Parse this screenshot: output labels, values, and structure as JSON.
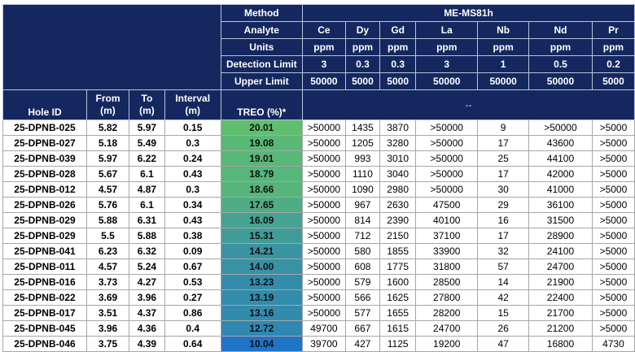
{
  "caption": "",
  "header": {
    "method_label": "Method",
    "method_value": "ME-MS81h",
    "analyte_label": "Analyte",
    "units_label": "Units",
    "detection_label": "Detection Limit",
    "upper_label": "Upper Limit",
    "analytes": [
      "Ce",
      "Dy",
      "Gd",
      "La",
      "Nb",
      "Nd",
      "Pr"
    ],
    "units": [
      "ppm",
      "ppm",
      "ppm",
      "ppm",
      "ppm",
      "ppm",
      "ppm"
    ],
    "detection_limits": [
      "3",
      "0.3",
      "0.3",
      "3",
      "1",
      "0.5",
      "0.2"
    ],
    "upper_limits": [
      "50000",
      "5000",
      "5000",
      "50000",
      "50000",
      "50000",
      "5000"
    ],
    "col_hole_id": "Hole ID",
    "col_from": "From (m)",
    "col_to": "To (m)",
    "col_interval": "Interval (m)",
    "col_treo": "TREO (%)*",
    "dash": "--"
  },
  "colors": {
    "header_bg": "#14285f",
    "treo_high": "#5fbf6e",
    "treo_low": "#1f74c8"
  },
  "rows": [
    {
      "hole": "25-DPNB-025",
      "from": "5.82",
      "to": "5.97",
      "interval": "0.15",
      "treo": "20.01",
      "Ce": ">50000",
      "Dy": "1435",
      "Gd": "3870",
      "La": ">50000",
      "Nb": "9",
      "Nd": ">50000",
      "Pr": ">5000"
    },
    {
      "hole": "25-DPNB-027",
      "from": "5.18",
      "to": "5.49",
      "interval": "0.3",
      "treo": "19.08",
      "Ce": ">50000",
      "Dy": "1205",
      "Gd": "3280",
      "La": ">50000",
      "Nb": "17",
      "Nd": "43600",
      "Pr": ">5000"
    },
    {
      "hole": "25-DPNB-039",
      "from": "5.97",
      "to": "6.22",
      "interval": "0.24",
      "treo": "19.01",
      "Ce": ">50000",
      "Dy": "993",
      "Gd": "3010",
      "La": ">50000",
      "Nb": "25",
      "Nd": "44100",
      "Pr": ">5000"
    },
    {
      "hole": "25-DPNB-028",
      "from": "5.67",
      "to": "6.1",
      "interval": "0.43",
      "treo": "18.79",
      "Ce": ">50000",
      "Dy": "1110",
      "Gd": "3040",
      "La": ">50000",
      "Nb": "17",
      "Nd": "42000",
      "Pr": ">5000"
    },
    {
      "hole": "25-DPNB-012",
      "from": "4.57",
      "to": "4.87",
      "interval": "0.3",
      "treo": "18.66",
      "Ce": ">50000",
      "Dy": "1090",
      "Gd": "2980",
      "La": ">50000",
      "Nb": "30",
      "Nd": "41000",
      "Pr": ">5000"
    },
    {
      "hole": "25-DPNB-026",
      "from": "5.76",
      "to": "6.1",
      "interval": "0.34",
      "treo": "17.65",
      "Ce": ">50000",
      "Dy": "967",
      "Gd": "2630",
      "La": "47500",
      "Nb": "29",
      "Nd": "36100",
      "Pr": ">5000"
    },
    {
      "hole": "25-DPNB-029",
      "from": "5.88",
      "to": "6.31",
      "interval": "0.43",
      "treo": "16.09",
      "Ce": ">50000",
      "Dy": "814",
      "Gd": "2390",
      "La": "40100",
      "Nb": "16",
      "Nd": "31500",
      "Pr": ">5000"
    },
    {
      "hole": "25-DPNB-029",
      "from": "5.5",
      "to": "5.88",
      "interval": "0.38",
      "treo": "15.31",
      "Ce": ">50000",
      "Dy": "712",
      "Gd": "2150",
      "La": "37100",
      "Nb": "17",
      "Nd": "28900",
      "Pr": ">5000"
    },
    {
      "hole": "25-DPNB-041",
      "from": "6.23",
      "to": "6.32",
      "interval": "0.09",
      "treo": "14.21",
      "Ce": ">50000",
      "Dy": "580",
      "Gd": "1855",
      "La": "33900",
      "Nb": "32",
      "Nd": "24100",
      "Pr": ">5000"
    },
    {
      "hole": "25-DPNB-011",
      "from": "4.57",
      "to": "5.24",
      "interval": "0.67",
      "treo": "14.00",
      "Ce": ">50000",
      "Dy": "608",
      "Gd": "1775",
      "La": "31800",
      "Nb": "57",
      "Nd": "24700",
      "Pr": ">5000"
    },
    {
      "hole": "25-DPNB-016",
      "from": "3.73",
      "to": "4.27",
      "interval": "0.53",
      "treo": "13.23",
      "Ce": ">50000",
      "Dy": "579",
      "Gd": "1600",
      "La": "28500",
      "Nb": "14",
      "Nd": "21900",
      "Pr": ">5000"
    },
    {
      "hole": "25-DPNB-022",
      "from": "3.69",
      "to": "3.96",
      "interval": "0.27",
      "treo": "13.19",
      "Ce": ">50000",
      "Dy": "566",
      "Gd": "1625",
      "La": "27800",
      "Nb": "42",
      "Nd": "22400",
      "Pr": ">5000"
    },
    {
      "hole": "25-DPNB-017",
      "from": "3.51",
      "to": "4.37",
      "interval": "0.86",
      "treo": "13.16",
      "Ce": ">50000",
      "Dy": "577",
      "Gd": "1655",
      "La": "28200",
      "Nb": "15",
      "Nd": "21700",
      "Pr": ">5000"
    },
    {
      "hole": "25-DPNB-045",
      "from": "3.96",
      "to": "4.36",
      "interval": "0.4",
      "treo": "12.72",
      "Ce": "49700",
      "Dy": "667",
      "Gd": "1615",
      "La": "24700",
      "Nb": "26",
      "Nd": "21200",
      "Pr": ">5000"
    },
    {
      "hole": "25-DPNB-046",
      "from": "3.75",
      "to": "4.39",
      "interval": "0.64",
      "treo": "10.04",
      "Ce": "39700",
      "Dy": "427",
      "Gd": "1125",
      "La": "19200",
      "Nb": "47",
      "Nd": "16800",
      "Pr": "4730"
    }
  ]
}
